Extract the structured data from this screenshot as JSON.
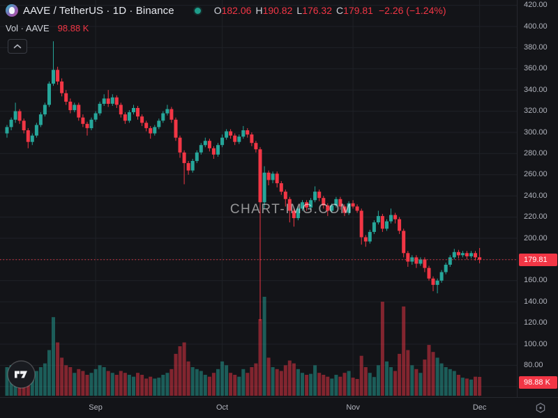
{
  "header": {
    "symbol_title": "AAVE / TetherUS · 1D · Binance",
    "ohlc": {
      "o_label": "O",
      "o": "182.06",
      "h_label": "H",
      "h": "190.82",
      "l_label": "L",
      "l": "176.32",
      "c_label": "C",
      "c": "179.81",
      "change": "−2.26 (−1.24%)"
    },
    "volume_row": {
      "label": "Vol · AAVE",
      "value": "98.88 K"
    }
  },
  "watermark": "CHART-IMG.COM",
  "chart_data": {
    "type": "candlestick",
    "symbol": "AAVE/TetherUS",
    "interval": "1D",
    "exchange": "Binance",
    "legend_position": "top-left",
    "grid": true,
    "price_axis_ticks": [
      420,
      400,
      380,
      360,
      340,
      320,
      300,
      280,
      260,
      240,
      220,
      200,
      180,
      160,
      140,
      120,
      100,
      80,
      60
    ],
    "price_axis_range": [
      55,
      425
    ],
    "month_ticks": [
      {
        "label": "Sep",
        "index": 21
      },
      {
        "label": "Oct",
        "index": 51
      },
      {
        "label": "Nov",
        "index": 82
      },
      {
        "label": "Dec",
        "index": 112
      }
    ],
    "price_line": 179.81,
    "price_line_label": "179.81",
    "last_volume_label": "98.88 K",
    "colors": {
      "up": "#26a69a",
      "down": "#f23645",
      "volume_up": "#26a69a80",
      "volume_down": "#f2364580",
      "grid": "#1f2127",
      "axis_text": "#b2b5be",
      "badge": "#f23645"
    },
    "candles_format": [
      "open",
      "high",
      "low",
      "close",
      "volume_K"
    ],
    "candles": [
      [
        299,
        307,
        295,
        305,
        150
      ],
      [
        305,
        314,
        302,
        312,
        160
      ],
      [
        312,
        328,
        309,
        320,
        170
      ],
      [
        320,
        322,
        308,
        311,
        140
      ],
      [
        311,
        313,
        299,
        302,
        130
      ],
      [
        302,
        304,
        285,
        291,
        120
      ],
      [
        291,
        299,
        288,
        297,
        110
      ],
      [
        297,
        309,
        295,
        307,
        130
      ],
      [
        307,
        319,
        305,
        317,
        150
      ],
      [
        317,
        328,
        315,
        326,
        170
      ],
      [
        326,
        348,
        324,
        346,
        240
      ],
      [
        346,
        386,
        344,
        359,
        413
      ],
      [
        359,
        362,
        345,
        348,
        280
      ],
      [
        348,
        351,
        334,
        337,
        200
      ],
      [
        337,
        340,
        326,
        329,
        160
      ],
      [
        329,
        332,
        318,
        321,
        150
      ],
      [
        321,
        328,
        319,
        326,
        120
      ],
      [
        326,
        328,
        311,
        314,
        140
      ],
      [
        314,
        317,
        305,
        308,
        130
      ],
      [
        308,
        310,
        297,
        304,
        110
      ],
      [
        304,
        314,
        302,
        312,
        120
      ],
      [
        312,
        320,
        310,
        318,
        140
      ],
      [
        318,
        329,
        316,
        327,
        160
      ],
      [
        327,
        336,
        325,
        332,
        150
      ],
      [
        332,
        340,
        324,
        327,
        130
      ],
      [
        327,
        336,
        325,
        333,
        120
      ],
      [
        333,
        335,
        323,
        326,
        110
      ],
      [
        326,
        328,
        314,
        317,
        130
      ],
      [
        317,
        319,
        308,
        311,
        120
      ],
      [
        311,
        321,
        309,
        319,
        110
      ],
      [
        319,
        326,
        317,
        323,
        100
      ],
      [
        323,
        325,
        312,
        315,
        120
      ],
      [
        315,
        317,
        306,
        309,
        110
      ],
      [
        309,
        311,
        301,
        304,
        90
      ],
      [
        304,
        306,
        294,
        299,
        100
      ],
      [
        299,
        307,
        297,
        305,
        90
      ],
      [
        305,
        313,
        303,
        311,
        95
      ],
      [
        311,
        320,
        309,
        318,
        110
      ],
      [
        318,
        326,
        316,
        322,
        120
      ],
      [
        322,
        324,
        309,
        312,
        140
      ],
      [
        312,
        314,
        292,
        295,
        220
      ],
      [
        295,
        297,
        276,
        281,
        260
      ],
      [
        281,
        283,
        251,
        271,
        280
      ],
      [
        271,
        273,
        260,
        264,
        180
      ],
      [
        264,
        275,
        262,
        273,
        150
      ],
      [
        273,
        283,
        271,
        281,
        140
      ],
      [
        281,
        290,
        279,
        288,
        130
      ],
      [
        288,
        295,
        286,
        292,
        110
      ],
      [
        292,
        294,
        282,
        285,
        100
      ],
      [
        285,
        287,
        275,
        279,
        120
      ],
      [
        279,
        290,
        277,
        288,
        140
      ],
      [
        288,
        298,
        286,
        295,
        180
      ],
      [
        295,
        303,
        293,
        301,
        160
      ],
      [
        301,
        303,
        294,
        297,
        120
      ],
      [
        297,
        299,
        288,
        291,
        110
      ],
      [
        291,
        298,
        289,
        296,
        100
      ],
      [
        296,
        306,
        294,
        302,
        140
      ],
      [
        302,
        304,
        295,
        298,
        120
      ],
      [
        298,
        300,
        287,
        290,
        150
      ],
      [
        290,
        292,
        281,
        284,
        170
      ],
      [
        284,
        286,
        122,
        234,
        403
      ],
      [
        234,
        268,
        228,
        262,
        520
      ],
      [
        262,
        264,
        250,
        255,
        200
      ],
      [
        255,
        263,
        252,
        261,
        150
      ],
      [
        261,
        263,
        248,
        252,
        140
      ],
      [
        252,
        254,
        241,
        244,
        130
      ],
      [
        244,
        246,
        230,
        237,
        160
      ],
      [
        237,
        239,
        215,
        226,
        185
      ],
      [
        226,
        228,
        211,
        219,
        170
      ],
      [
        219,
        230,
        217,
        228,
        140
      ],
      [
        228,
        236,
        226,
        234,
        120
      ],
      [
        234,
        236,
        226,
        229,
        110
      ],
      [
        229,
        238,
        227,
        236,
        115
      ],
      [
        236,
        249,
        234,
        244,
        160
      ],
      [
        244,
        246,
        235,
        238,
        120
      ],
      [
        238,
        240,
        228,
        231,
        110
      ],
      [
        231,
        233,
        221,
        226,
        100
      ],
      [
        226,
        233,
        224,
        231,
        90
      ],
      [
        231,
        239,
        229,
        237,
        110
      ],
      [
        237,
        239,
        227,
        230,
        100
      ],
      [
        230,
        232,
        221,
        224,
        120
      ],
      [
        224,
        235,
        222,
        233,
        130
      ],
      [
        233,
        236,
        228,
        230,
        95
      ],
      [
        230,
        232,
        224,
        226,
        88
      ],
      [
        226,
        228,
        194,
        201,
        210
      ],
      [
        201,
        203,
        192,
        197,
        150
      ],
      [
        197,
        208,
        195,
        206,
        120
      ],
      [
        206,
        217,
        204,
        215,
        98
      ],
      [
        215,
        226,
        213,
        221,
        160
      ],
      [
        221,
        223,
        206,
        209,
        494
      ],
      [
        209,
        218,
        207,
        216,
        180
      ],
      [
        216,
        228,
        214,
        222,
        150
      ],
      [
        222,
        224,
        214,
        218,
        130
      ],
      [
        218,
        220,
        204,
        207,
        220
      ],
      [
        207,
        209,
        182,
        186,
        469
      ],
      [
        186,
        188,
        173,
        178,
        240
      ],
      [
        178,
        184,
        175,
        182,
        160
      ],
      [
        182,
        184,
        172,
        176,
        140
      ],
      [
        176,
        182,
        174,
        180,
        120
      ],
      [
        180,
        182,
        168,
        172,
        190
      ],
      [
        172,
        174,
        160,
        162,
        267
      ],
      [
        162,
        164,
        150,
        156,
        230
      ],
      [
        156,
        162,
        148,
        160,
        200
      ],
      [
        160,
        170,
        158,
        168,
        170
      ],
      [
        168,
        177,
        166,
        175,
        150
      ],
      [
        175,
        184,
        173,
        182,
        140
      ],
      [
        182,
        190,
        180,
        187,
        130
      ],
      [
        187,
        189,
        181,
        184,
        110
      ],
      [
        184,
        188,
        182,
        186,
        95
      ],
      [
        186,
        188,
        180,
        183,
        90
      ],
      [
        183,
        188,
        181,
        186,
        85
      ],
      [
        186,
        188,
        179,
        182,
        100
      ],
      [
        182.06,
        190.82,
        176.32,
        179.81,
        98.88
      ]
    ]
  }
}
